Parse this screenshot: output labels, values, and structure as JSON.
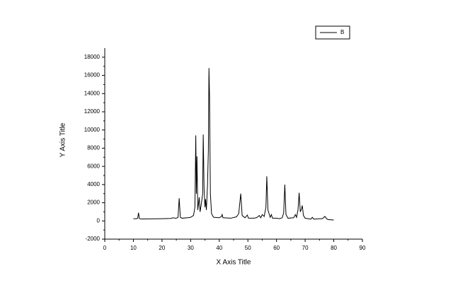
{
  "chart_data": {
    "type": "line",
    "x_label": "X Axis Title",
    "y_label": "Y Axis Title",
    "x": [
      10,
      11,
      11.5,
      11.8,
      12.1,
      13,
      15,
      20,
      23,
      24,
      24.5,
      25,
      25.6,
      26,
      26.4,
      27,
      29,
      30,
      31,
      31.5,
      31.8,
      32,
      32.2,
      32.5,
      33,
      33.3,
      33.8,
      34.2,
      34.4,
      34.7,
      35,
      35.2,
      35.5,
      35.9,
      36.2,
      36.4,
      36.6,
      36.9,
      37.3,
      38,
      40,
      40.8,
      41,
      41.3,
      44,
      46,
      46.8,
      47.5,
      48,
      49,
      49.8,
      50.2,
      52,
      53,
      54,
      54.5,
      55,
      55.7,
      56.3,
      56.6,
      57,
      57.8,
      58.2,
      58.6,
      60,
      61,
      62,
      62.5,
      62.9,
      63.3,
      64,
      66,
      66.6,
      67,
      67.5,
      67.9,
      68.3,
      68.7,
      69,
      69.4,
      70,
      72,
      72.5,
      73,
      75,
      76,
      76.9,
      77.5,
      78,
      80
    ],
    "series": [
      {
        "name": "B",
        "color": "#000000",
        "values": [
          250,
          250,
          300,
          900,
          250,
          220,
          230,
          250,
          280,
          350,
          300,
          300,
          400,
          2500,
          400,
          300,
          350,
          400,
          600,
          1500,
          9400,
          3000,
          7100,
          1200,
          2600,
          1000,
          2000,
          3000,
          9500,
          3500,
          1500,
          2400,
          1200,
          4000,
          7800,
          16800,
          13700,
          3000,
          800,
          400,
          350,
          500,
          700,
          350,
          300,
          450,
          800,
          3000,
          600,
          350,
          650,
          300,
          300,
          350,
          600,
          350,
          700,
          500,
          1500,
          4900,
          1200,
          400,
          700,
          300,
          300,
          250,
          350,
          900,
          4000,
          700,
          300,
          350,
          700,
          400,
          1200,
          3100,
          1000,
          1300,
          1700,
          600,
          300,
          200,
          400,
          200,
          250,
          250,
          500,
          250,
          150,
          100
        ]
      }
    ],
    "xlim": [
      0,
      90
    ],
    "xticks": [
      0,
      10,
      20,
      30,
      40,
      50,
      60,
      70,
      80,
      90
    ],
    "ylim": [
      -2000,
      19000
    ],
    "yticks": [
      -2000,
      0,
      2000,
      4000,
      6000,
      8000,
      10000,
      12000,
      14000,
      16000,
      18000
    ],
    "legend": "upper right",
    "grid": false
  }
}
